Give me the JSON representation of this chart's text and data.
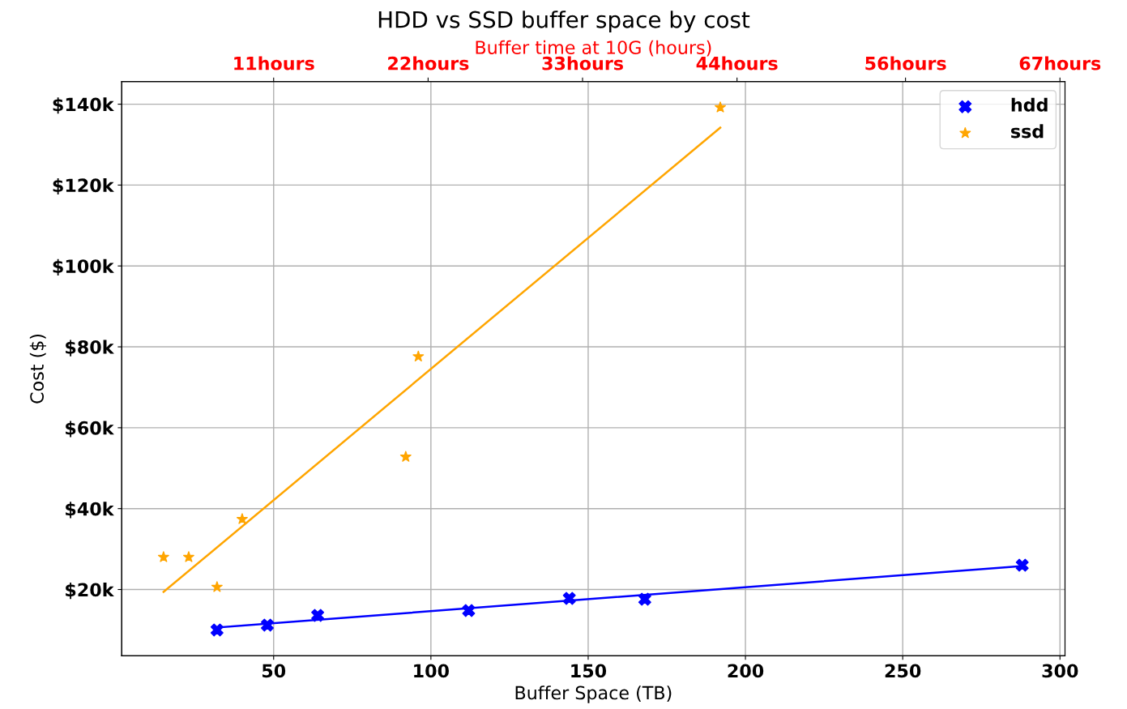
{
  "chart_data": {
    "type": "scatter",
    "title": "HDD vs SSD buffer space by cost",
    "xlabel": "Buffer Space (TB)",
    "ylabel": "Cost ($)",
    "x2label": "Buffer time at 10G (hours)",
    "xlim": [
      1.7,
      301.6
    ],
    "xticks": [
      50,
      100,
      150,
      200,
      250,
      300
    ],
    "x2lim": [
      0.18,
      67.36
    ],
    "x2ticks": [
      {
        "value": 11,
        "label": "11hours"
      },
      {
        "value": 22,
        "label": "22hours"
      },
      {
        "value": 33,
        "label": "33hours"
      },
      {
        "value": 44,
        "label": "44hours"
      },
      {
        "value": 56,
        "label": "56hours"
      },
      {
        "value": 67,
        "label": "67hours"
      }
    ],
    "ylim": [
      3.6,
      145.6
    ],
    "yticks": [
      {
        "value": 20,
        "label": "$20k"
      },
      {
        "value": 40,
        "label": "$40k"
      },
      {
        "value": 60,
        "label": "$60k"
      },
      {
        "value": 80,
        "label": "$80k"
      },
      {
        "value": 100,
        "label": "$100k"
      },
      {
        "value": 120,
        "label": "$120k"
      },
      {
        "value": 140,
        "label": "$140k"
      }
    ],
    "grid": true,
    "legend": "top right",
    "series": [
      {
        "name": "hdd",
        "marker": "cross",
        "color": "#0000ff",
        "x": [
          32,
          48,
          64,
          112,
          144,
          168,
          288
        ],
        "values": [
          10,
          11.2,
          13.6,
          14.8,
          17.8,
          17.6,
          26
        ]
      },
      {
        "name": "ssd",
        "marker": "star",
        "color": "#ffa500",
        "x": [
          15,
          23,
          32,
          40,
          92,
          96,
          192
        ],
        "values": [
          28,
          28,
          20.6,
          37.4,
          52.8,
          77.6,
          139.2
        ]
      },
      {
        "type": "line",
        "marker": "none",
        "color": "#0000ff",
        "x": [
          32,
          288
        ],
        "values": [
          10.6,
          25.8
        ]
      },
      {
        "type": "line",
        "marker": "none",
        "color": "#ffa500",
        "x": [
          15,
          192
        ],
        "values": [
          19.4,
          134.2
        ]
      }
    ]
  }
}
